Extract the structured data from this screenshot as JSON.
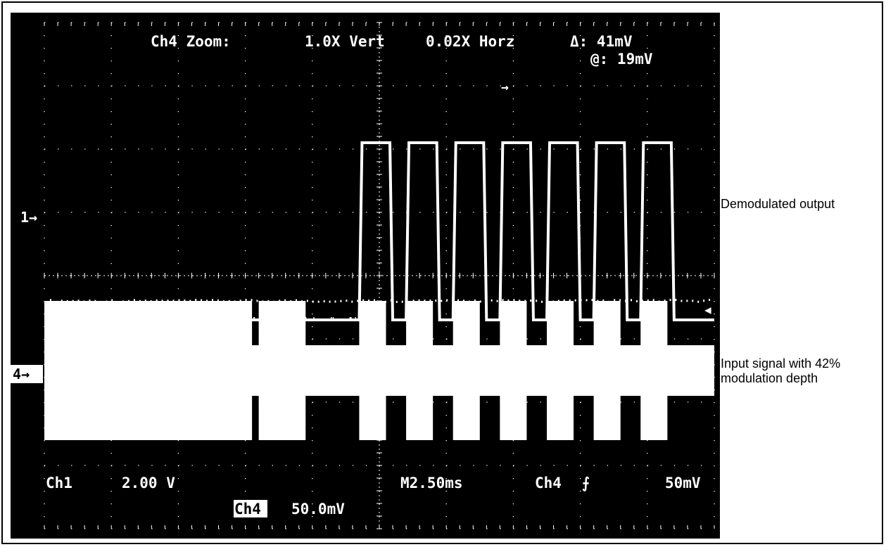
{
  "header": {
    "zoom_label": "Ch4 Zoom:",
    "vert_zoom": "1.0X Vert",
    "horz_zoom": "0.02X Horz",
    "delta_readout": "Δ: 41mV",
    "at_readout": "@: 19mV"
  },
  "footer": {
    "ch1_label": "Ch1",
    "ch1_scale": "2.00 V",
    "ch4_label": "Ch4",
    "ch4_scale": "50.0mV",
    "timebase": "M2.50ms",
    "trigger_source": "Ch4",
    "trigger_slope_glyph": "⨍",
    "trigger_level": "50mV"
  },
  "markers": {
    "ch1_marker": "1→",
    "ch4_marker": "4→",
    "trigger_arrow": "→",
    "level_arrow": "◀"
  },
  "annotations": {
    "demod_label": "Demodulated output",
    "input_label_line1": "Input signal with 42%",
    "input_label_line2": "modulation depth"
  },
  "colors": {
    "screen_bg": "#000000",
    "trace": "#ffffff",
    "grid": "#ffffff"
  },
  "chart_data": {
    "type": "line",
    "grid": {
      "divisions_x": 10,
      "divisions_y": 8,
      "minor_per_division": 5
    },
    "demodulated": {
      "name": "Demodulated output",
      "low_div": 3.3,
      "high_div": 6.1,
      "pulse_starts_div": [
        4.7,
        5.4,
        6.1,
        6.8,
        7.5,
        8.2,
        8.9
      ],
      "pulse_width_div": 0.5,
      "end_div": 10
    },
    "input": {
      "name": "Input signal with 42% modulation depth",
      "envelope_high": {
        "top_div": 3.6,
        "bottom_div": 1.4
      },
      "envelope_low": {
        "top_div": 2.9,
        "bottom_div": 2.1
      },
      "high_segments_div": [
        [
          0,
          3.1
        ],
        [
          3.2,
          3.9
        ],
        [
          4.7,
          5.1
        ],
        [
          5.4,
          5.8
        ],
        [
          6.1,
          6.5
        ],
        [
          6.8,
          7.2
        ],
        [
          7.5,
          7.9
        ],
        [
          8.2,
          8.6
        ],
        [
          8.9,
          9.3
        ]
      ]
    }
  }
}
